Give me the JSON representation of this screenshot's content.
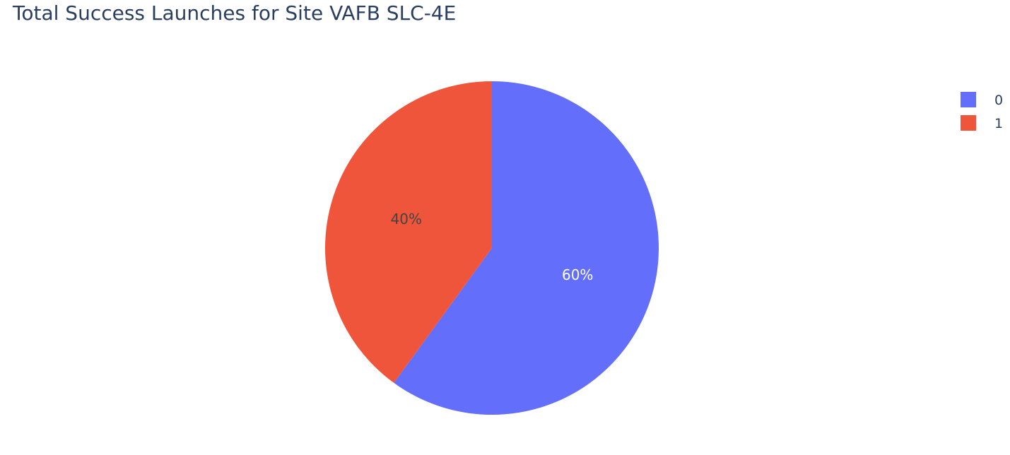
{
  "chart_data": {
    "type": "pie",
    "title": "Total Success Launches for Site VAFB SLC-4E",
    "slices": [
      {
        "label": "0",
        "value": 60,
        "percent_label": "60%",
        "color": "#636efa",
        "text_color": "#ffffff"
      },
      {
        "label": "1",
        "value": 40,
        "percent_label": "40%",
        "color": "#ef553b",
        "text_color": "#444444"
      }
    ],
    "start_angle_deg": 90,
    "direction": "clockwise",
    "legend": {
      "position": "top-right",
      "entries": [
        "0",
        "1"
      ]
    }
  }
}
